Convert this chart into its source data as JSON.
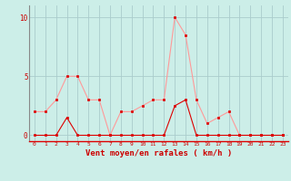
{
  "x": [
    0,
    1,
    2,
    3,
    4,
    5,
    6,
    7,
    8,
    9,
    10,
    11,
    12,
    13,
    14,
    15,
    16,
    17,
    18,
    19,
    20,
    21,
    22,
    23
  ],
  "wind_avg": [
    0,
    0,
    0,
    1.5,
    0,
    0,
    0,
    0,
    0,
    0,
    0,
    0,
    0,
    2.5,
    3,
    0,
    0,
    0,
    0,
    0,
    0,
    0,
    0,
    0
  ],
  "wind_gust": [
    2,
    2,
    3,
    5,
    5,
    3,
    3,
    0,
    2,
    2,
    2.5,
    3,
    3,
    10,
    8.5,
    3,
    1,
    1.5,
    2,
    0,
    0,
    0,
    0,
    0
  ],
  "bg_color": "#cceee8",
  "line_avg_color": "#dd0000",
  "line_gust_color": "#ff9999",
  "grid_color": "#aacccc",
  "xlabel": "Vent moyen/en rafales ( km/h )",
  "yticks": [
    0,
    5,
    10
  ],
  "xticks": [
    0,
    1,
    2,
    3,
    4,
    5,
    6,
    7,
    8,
    9,
    10,
    11,
    12,
    13,
    14,
    15,
    16,
    17,
    18,
    19,
    20,
    21,
    22,
    23
  ],
  "ylim": [
    -0.5,
    11.0
  ],
  "xlim": [
    -0.5,
    23.5
  ],
  "axis_color": "#cc0000",
  "markersize": 2.0,
  "linewidth": 0.8
}
